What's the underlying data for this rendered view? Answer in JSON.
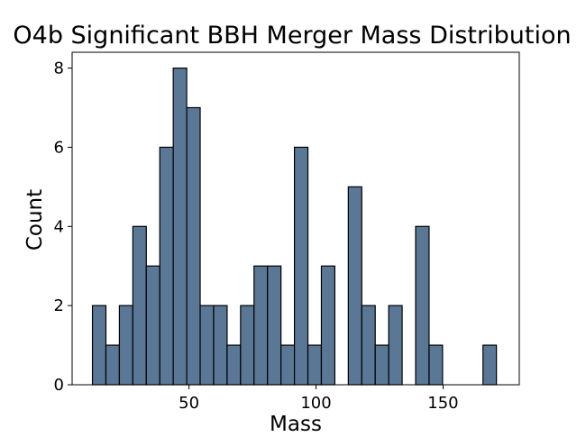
{
  "chart_data": {
    "type": "bar",
    "title": "O4b Significant BBH Merger Mass Distribution",
    "xlabel": "Mass",
    "ylabel": "Count",
    "xlim": [
      4,
      180
    ],
    "ylim": [
      0,
      8.4
    ],
    "x_ticks": [
      50,
      100,
      150
    ],
    "y_ticks": [
      0,
      2,
      4,
      6,
      8
    ],
    "grid": false,
    "bar_color": "#5a7896",
    "edge_color": "#000000",
    "bins": [
      {
        "start": 12.0,
        "end": 17.3,
        "count": 2
      },
      {
        "start": 17.3,
        "end": 22.6,
        "count": 1
      },
      {
        "start": 22.6,
        "end": 27.9,
        "count": 2
      },
      {
        "start": 27.9,
        "end": 33.2,
        "count": 4
      },
      {
        "start": 33.2,
        "end": 38.5,
        "count": 3
      },
      {
        "start": 38.5,
        "end": 43.8,
        "count": 6
      },
      {
        "start": 43.8,
        "end": 49.1,
        "count": 8
      },
      {
        "start": 49.1,
        "end": 54.4,
        "count": 7
      },
      {
        "start": 54.4,
        "end": 59.7,
        "count": 2
      },
      {
        "start": 59.7,
        "end": 65.0,
        "count": 2
      },
      {
        "start": 65.0,
        "end": 70.3,
        "count": 1
      },
      {
        "start": 70.3,
        "end": 75.6,
        "count": 2
      },
      {
        "start": 75.6,
        "end": 80.9,
        "count": 3
      },
      {
        "start": 80.9,
        "end": 86.2,
        "count": 3
      },
      {
        "start": 86.2,
        "end": 91.5,
        "count": 1
      },
      {
        "start": 91.5,
        "end": 96.8,
        "count": 6
      },
      {
        "start": 96.8,
        "end": 102.1,
        "count": 1
      },
      {
        "start": 102.1,
        "end": 107.4,
        "count": 3
      },
      {
        "start": 107.4,
        "end": 112.7,
        "count": 0
      },
      {
        "start": 112.7,
        "end": 118.0,
        "count": 5
      },
      {
        "start": 118.0,
        "end": 123.3,
        "count": 2
      },
      {
        "start": 123.3,
        "end": 128.6,
        "count": 1
      },
      {
        "start": 128.6,
        "end": 133.9,
        "count": 2
      },
      {
        "start": 133.9,
        "end": 139.2,
        "count": 0
      },
      {
        "start": 139.2,
        "end": 144.5,
        "count": 4
      },
      {
        "start": 144.5,
        "end": 149.8,
        "count": 1
      },
      {
        "start": 149.8,
        "end": 155.1,
        "count": 0
      },
      {
        "start": 155.1,
        "end": 160.4,
        "count": 0
      },
      {
        "start": 160.4,
        "end": 165.7,
        "count": 0
      },
      {
        "start": 165.7,
        "end": 171.0,
        "count": 1
      }
    ]
  }
}
